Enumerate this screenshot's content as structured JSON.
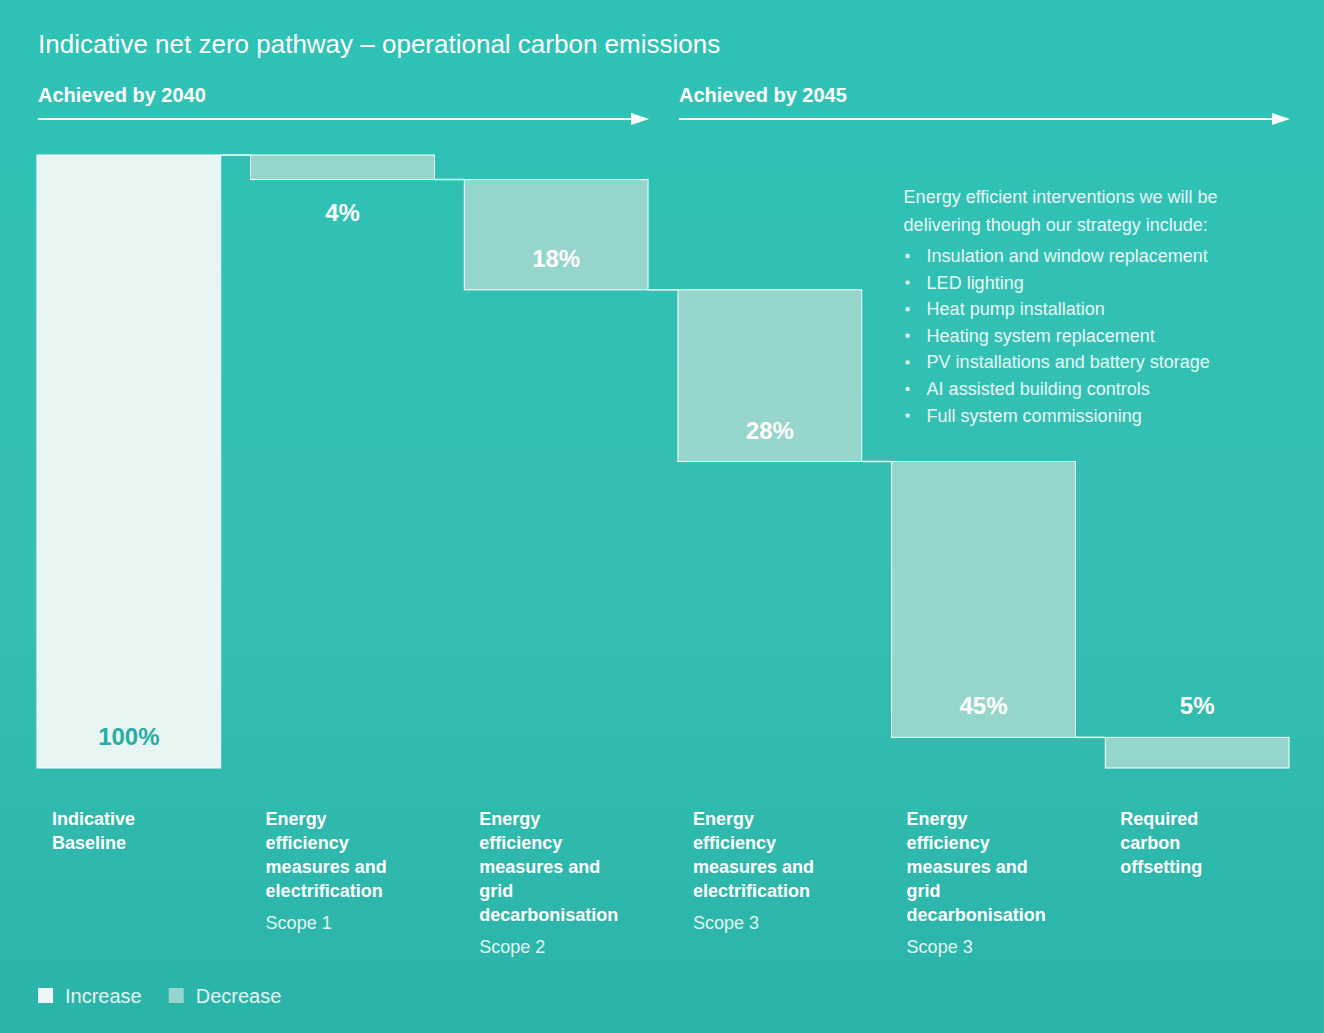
{
  "chart_data": {
    "type": "waterfall",
    "title": "Indicative net zero pathway – operational carbon emissions",
    "annotations": [
      "Achieved by 2040",
      "Achieved by 2045"
    ],
    "note": {
      "heading": "Energy efficient interventions we will be delivering though our strategy include:",
      "items": [
        "Insulation and window replacement",
        "LED lighting",
        "Heat pump installation",
        "Heating system replacement",
        "PV installations and battery storage",
        "AI assisted building controls",
        "Full system commissioning"
      ]
    },
    "categories": [
      "Indicative Baseline",
      "Energy efficiency measures and electrification",
      "Energy efficiency measures and grid decarbonisation",
      "Energy efficiency measures and electrification",
      "Energy efficiency measures and grid decarbonisation",
      "Required carbon offsetting"
    ],
    "subcategories": [
      null,
      "Scope 1",
      "Scope 2",
      "Scope 3",
      "Scope 3",
      null
    ],
    "series": [
      {
        "name": "Increase",
        "color": "#eef7f6",
        "values": [
          100,
          null,
          null,
          null,
          null,
          null
        ],
        "value_labels": [
          "100%",
          null,
          null,
          null,
          null,
          null
        ]
      },
      {
        "name": "Decrease",
        "color": "#96d5cb",
        "values": [
          null,
          4,
          18,
          28,
          45,
          5
        ],
        "value_labels": [
          null,
          "4%",
          "18%",
          "28%",
          "45%",
          "5%"
        ]
      }
    ],
    "ylim": [
      0,
      100
    ],
    "tick_labels": false,
    "data_labels": true,
    "legend": "bottom left"
  }
}
